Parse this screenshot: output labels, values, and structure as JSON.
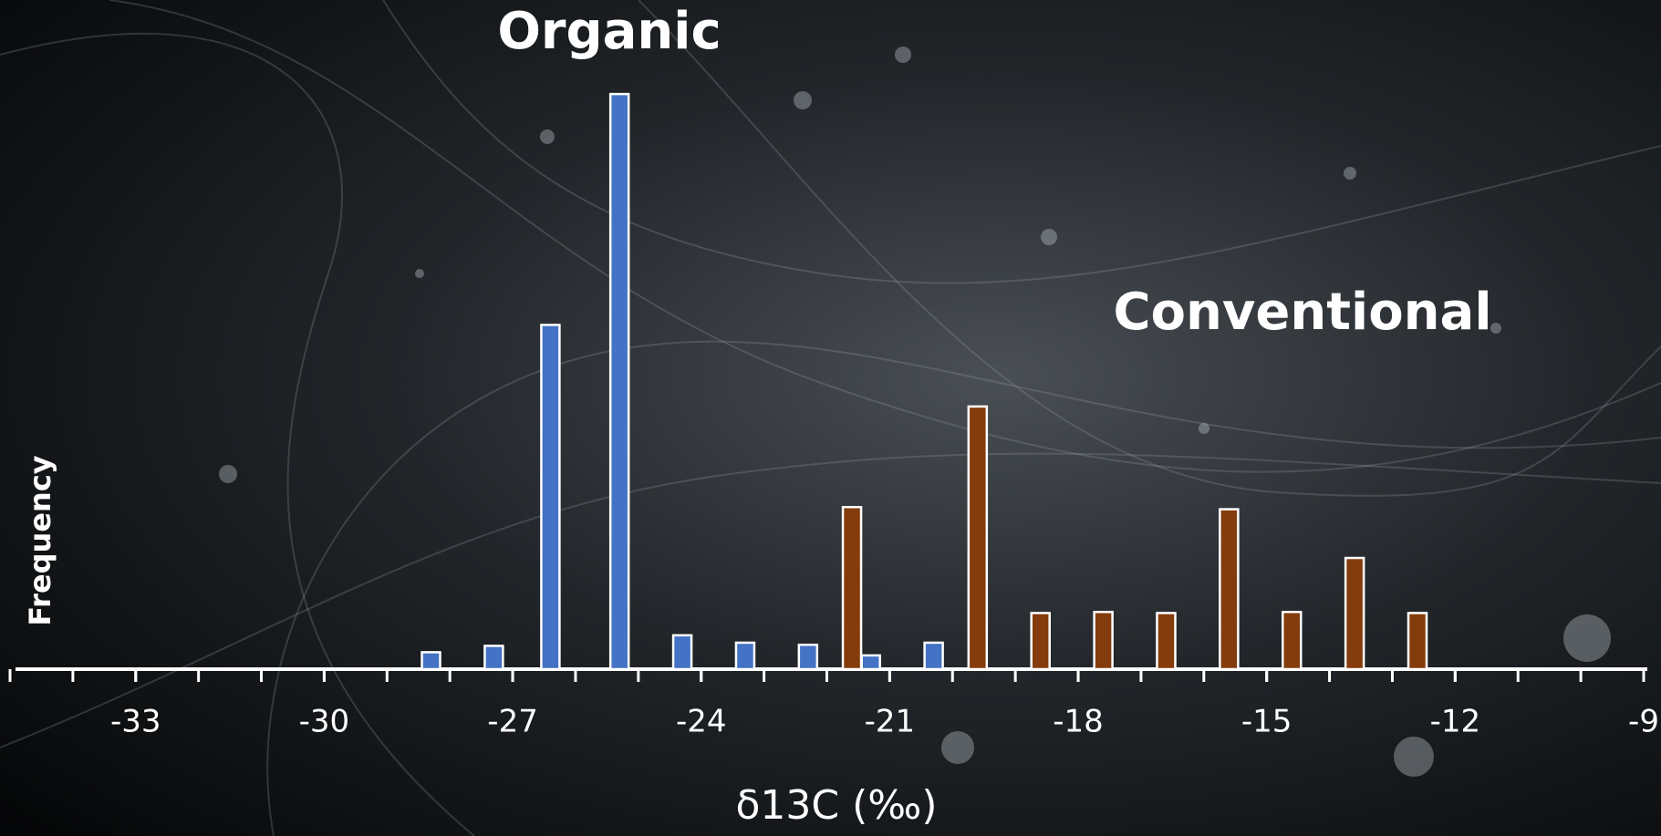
{
  "chart_data": {
    "type": "bar",
    "xlabel": "δ13C (‰)",
    "ylabel": "Frequency",
    "xlim": [
      -35,
      -9
    ],
    "xticks": [
      -33,
      -30,
      -27,
      -24,
      -21,
      -18,
      -15,
      -12,
      -9
    ],
    "ylim": [
      0,
      550
    ],
    "series": [
      {
        "name": "Organic",
        "color": "#4472c4",
        "x": [
          -28.3,
          -27.3,
          -26.4,
          -25.3,
          -24.3,
          -23.3,
          -22.3,
          -21.3,
          -20.3
        ],
        "values": [
          16,
          22,
          325,
          543,
          32,
          25,
          23,
          13,
          25
        ]
      },
      {
        "name": "Conventional",
        "color": "#843c0c",
        "x": [
          -21.6,
          -19.6,
          -18.6,
          -17.6,
          -16.6,
          -15.6,
          -14.6,
          -13.6,
          -12.6
        ],
        "values": [
          153,
          248,
          53,
          54,
          53,
          151,
          54,
          105,
          53
        ]
      }
    ]
  }
}
